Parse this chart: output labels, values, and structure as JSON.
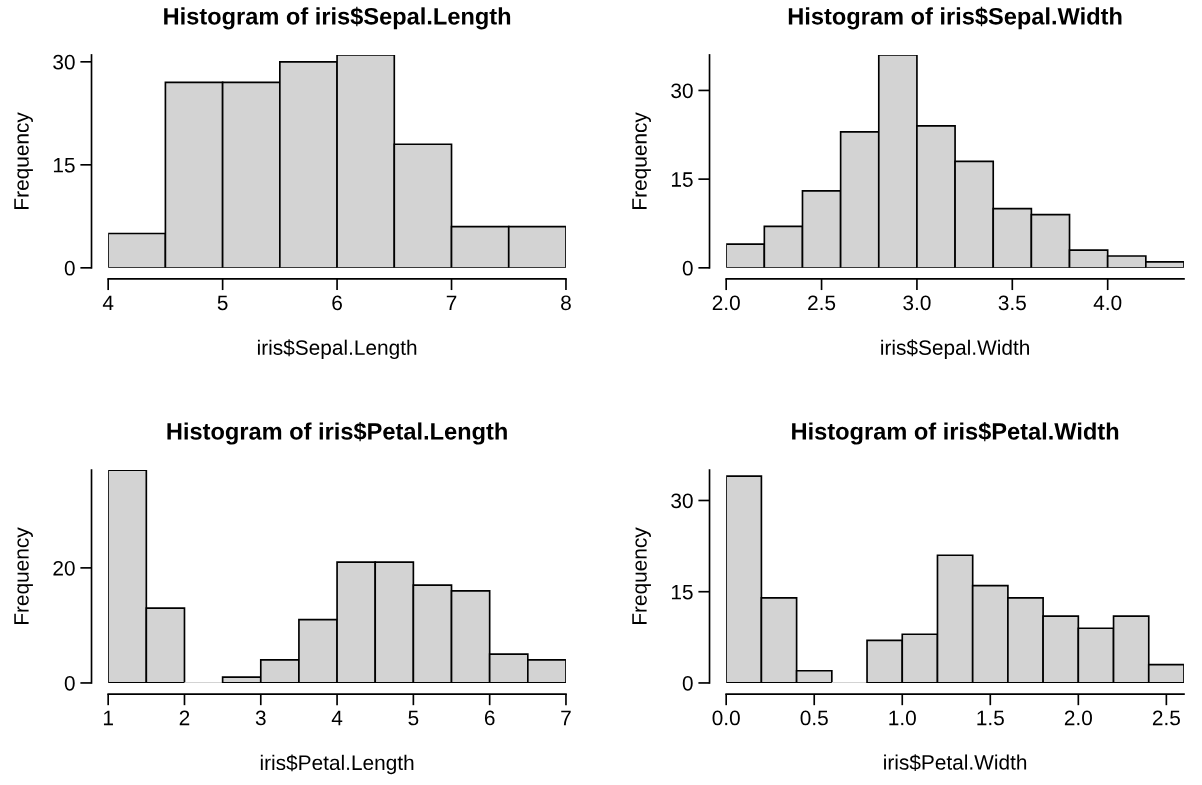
{
  "chart_data": [
    {
      "type": "histogram",
      "title": "Histogram of iris$Sepal.Length",
      "xlabel": "iris$Sepal.Length",
      "ylabel": "Frequency",
      "color": "#d3d3d3",
      "bins": [
        4,
        4.5,
        5,
        5.5,
        6,
        6.5,
        7,
        7.5,
        8
      ],
      "values": [
        5,
        27,
        27,
        30,
        31,
        18,
        6,
        6
      ],
      "xlim": [
        4,
        8
      ],
      "ylim": [
        0,
        31
      ],
      "xticks": [
        4,
        5,
        6,
        7,
        8
      ],
      "yticks": [
        0,
        15,
        30
      ],
      "grid": false,
      "legend": false
    },
    {
      "type": "histogram",
      "title": "Histogram of iris$Sepal.Width",
      "xlabel": "iris$Sepal.Width",
      "ylabel": "Frequency",
      "color": "#d3d3d3",
      "bins": [
        2.0,
        2.2,
        2.4,
        2.6,
        2.8,
        3.0,
        3.2,
        3.4,
        3.6,
        3.8,
        4.0,
        4.2,
        4.4
      ],
      "values": [
        4,
        7,
        13,
        23,
        36,
        24,
        18,
        10,
        9,
        3,
        2,
        1
      ],
      "xlim": [
        2.0,
        4.4
      ],
      "ylim": [
        0,
        36
      ],
      "xticks": [
        {
          "value": 2.0,
          "label": "2.0"
        },
        2.5,
        {
          "value": 3.0,
          "label": "3.0"
        },
        3.5,
        {
          "value": 4.0,
          "label": "4.0"
        }
      ],
      "yticks": [
        0,
        15,
        30
      ],
      "grid": false,
      "legend": false
    },
    {
      "type": "histogram",
      "title": "Histogram of iris$Petal.Length",
      "xlabel": "iris$Petal.Length",
      "ylabel": "Frequency",
      "color": "#d3d3d3",
      "bins": [
        1,
        1.5,
        2,
        2.5,
        3,
        3.5,
        4,
        4.5,
        5,
        5.5,
        6,
        6.5,
        7
      ],
      "values": [
        37,
        13,
        0,
        1,
        4,
        11,
        21,
        21,
        17,
        16,
        5,
        4
      ],
      "xlim": [
        1,
        7
      ],
      "ylim": [
        0,
        37
      ],
      "xticks": [
        1,
        2,
        3,
        4,
        5,
        6,
        7
      ],
      "yticks": [
        0,
        20
      ],
      "grid": false,
      "legend": false
    },
    {
      "type": "histogram",
      "title": "Histogram of iris$Petal.Width",
      "xlabel": "iris$Petal.Width",
      "ylabel": "Frequency",
      "color": "#d3d3d3",
      "bins": [
        0.0,
        0.2,
        0.4,
        0.6,
        0.8,
        1.0,
        1.2,
        1.4,
        1.6,
        1.8,
        2.0,
        2.2,
        2.4,
        2.6
      ],
      "values": [
        34,
        14,
        2,
        0,
        7,
        8,
        21,
        16,
        14,
        11,
        9,
        11,
        3
      ],
      "xlim": [
        0.0,
        2.6
      ],
      "ylim": [
        0,
        35
      ],
      "xticks": [
        {
          "value": 0.0,
          "label": "0.0"
        },
        0.5,
        {
          "value": 1.0,
          "label": "1.0"
        },
        1.5,
        {
          "value": 2.0,
          "label": "2.0"
        },
        2.5
      ],
      "yticks": [
        0,
        15,
        30
      ],
      "grid": false,
      "legend": false
    }
  ]
}
